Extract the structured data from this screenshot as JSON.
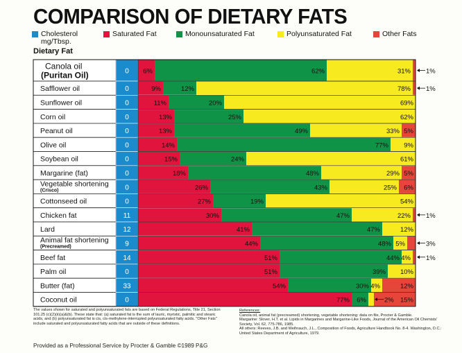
{
  "title": "COMPARISON OF DIETARY FATS",
  "section_label": "Dietary Fat",
  "legend": [
    {
      "label": "Cholesterol mg/Tbsp.",
      "color": "#1a8cce"
    },
    {
      "label": "Saturated Fat",
      "color": "#e0143c"
    },
    {
      "label": "Monounsaturated Fat",
      "color": "#0f9447"
    },
    {
      "label": "Polyunsaturated Fat",
      "color": "#f7ea1e"
    },
    {
      "label": "Other Fats",
      "color": "#e6463a"
    }
  ],
  "colors": {
    "cholesterol": "#1a8cce",
    "saturated": "#e0143c",
    "monounsaturated": "#0f9447",
    "polyunsaturated": "#f7ea1e",
    "other": "#e6463a"
  },
  "chart_data": {
    "type": "bar",
    "title": "COMPARISON OF DIETARY FATS",
    "xlabel": "",
    "ylabel": "Dietary Fat",
    "stacked": true,
    "categories": [
      "Canola oil (Puritan Oil)",
      "Safflower oil",
      "Sunflower oil",
      "Corn oil",
      "Peanut oil",
      "Olive oil",
      "Soybean oil",
      "Margarine (fat)",
      "Vegetable shortening (Crisco)",
      "Cottonseed oil",
      "Chicken fat",
      "Lard",
      "Animal fat shortening (Precreamed)",
      "Beef fat",
      "Palm oil",
      "Butter (fat)",
      "Coconut oil"
    ],
    "rows": [
      {
        "name": "Canola oil",
        "sub": "(Puritan Oil)",
        "big": true,
        "chol": 0,
        "sat": 6,
        "mono": 62,
        "poly": 31,
        "other": 1,
        "other_label": "1%",
        "other_outside": true
      },
      {
        "name": "Safflower oil",
        "chol": 0,
        "sat": 9,
        "mono": 12,
        "poly": 78,
        "other": 1,
        "other_label": "1%",
        "other_outside": true
      },
      {
        "name": "Sunflower oil",
        "chol": 0,
        "sat": 11,
        "mono": 20,
        "poly": 69,
        "other": 0
      },
      {
        "name": "Corn oil",
        "chol": 0,
        "sat": 13,
        "mono": 25,
        "poly": 62,
        "other": 0
      },
      {
        "name": "Peanut oil",
        "chol": 0,
        "sat": 13,
        "mono": 49,
        "poly": 33,
        "other": 5,
        "other_label": "5%"
      },
      {
        "name": "Olive oil",
        "chol": 0,
        "sat": 14,
        "mono": 77,
        "poly": 9,
        "other": 0
      },
      {
        "name": "Soybean oil",
        "chol": 0,
        "sat": 15,
        "mono": 24,
        "poly": 61,
        "other": 0
      },
      {
        "name": "Margarine (fat)",
        "chol": 0,
        "sat": 18,
        "mono": 48,
        "poly": 29,
        "other": 5,
        "other_label": "5%"
      },
      {
        "name": "Vegetable shortening",
        "sub": "(Crisco)",
        "chol": 0,
        "sat": 26,
        "mono": 43,
        "poly": 25,
        "other": 6,
        "other_label": "6%"
      },
      {
        "name": "Cottonseed oil",
        "chol": 0,
        "sat": 27,
        "mono": 19,
        "poly": 54,
        "other": 0
      },
      {
        "name": "Chicken fat",
        "chol": 11,
        "sat": 30,
        "mono": 47,
        "poly": 22,
        "other": 1,
        "other_label": "1%",
        "other_outside": true
      },
      {
        "name": "Lard",
        "chol": 12,
        "sat": 41,
        "mono": 47,
        "poly": 12,
        "other": 0
      },
      {
        "name": "Animal fat shortening",
        "sub": "(Precreamed)",
        "chol": 9,
        "sat": 44,
        "mono": 48,
        "poly": 5,
        "other": 3,
        "other_label": "3%",
        "other_outside": true
      },
      {
        "name": "Beef fat",
        "chol": 14,
        "sat": 51,
        "mono": 44,
        "poly": 4,
        "other": 1,
        "other_label": "1%",
        "other_outside": true
      },
      {
        "name": "Palm oil",
        "chol": 0,
        "sat": 51,
        "mono": 39,
        "poly": 10,
        "other": 0
      },
      {
        "name": "Butter (fat)",
        "chol": 33,
        "sat": 54,
        "mono": 30,
        "poly": 4,
        "other": 12,
        "other_label": "12%"
      },
      {
        "name": "Coconut oil",
        "chol": 0,
        "sat": 77,
        "mono": 6,
        "poly": 2,
        "other": 15,
        "other_label": "15%",
        "poly_outside": true
      }
    ]
  },
  "notes": {
    "left": "The values shown for saturated and polyunsaturated fats are based on Federal Regulations, Title 21, Section 101.25 (c)(2)(ii)(a)&(b). These state that: (a) saturated fat is the sum of lauric, myristic, palmitic and stearic acids, and (b) polyunsaturated fat is cis, cis-methylene-interrupted polyunsaturated fatty acids. \"Other Fats\" include saturated and polyunsaturated fatty acids that are outside of these definitions.",
    "references_head": "References:",
    "references": [
      "Canola oil, animal fat (precreamed) shortening, vegetable shortening: data on file, Procter & Gamble.",
      "Margarine: Slover, H.T. et al. Lipids in Margarines and Margarine-Like Foods, Journal of the American Oil Chemists' Society, Vol. 62, 775-786, 1985.",
      "All others: Reeves, J.B. and Weihrauch, J.L., Composition of Foods, Agriculture Handbook No. 8-4. Washington, D.C.: United States Department of Agriculture, 1979."
    ]
  },
  "footer": "Provided as a Professional Service by Procter & Gamble ©1989 P&G"
}
